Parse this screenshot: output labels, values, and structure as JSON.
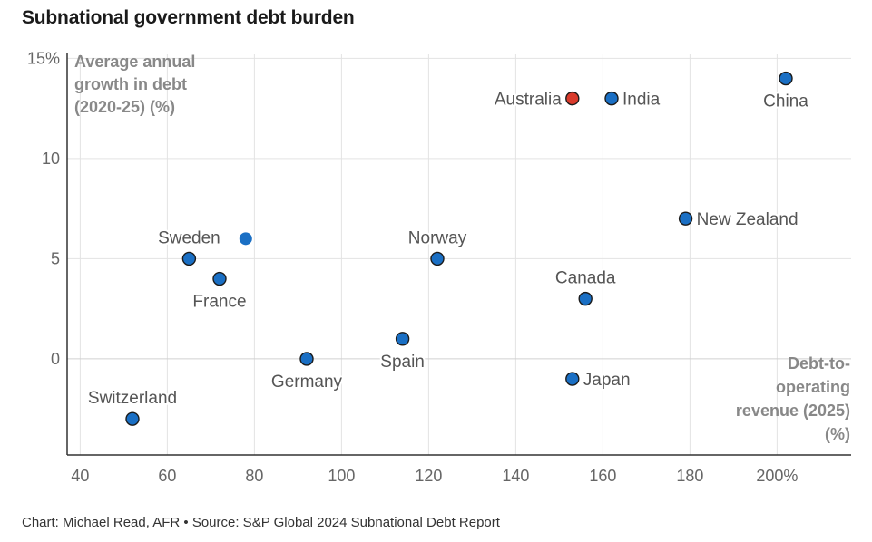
{
  "title": "Subnational government debt burden",
  "footer": "Chart: Michael Read, AFR • Source: S&P Global 2024 Subnational Debt Report",
  "colors": {
    "point": "#1a6fc4",
    "highlight": "#d93a2b",
    "grid": "#e3e3e3",
    "axis": "#333333"
  },
  "chart_data": {
    "type": "scatter",
    "title": "Subnational government debt burden",
    "xlabel": [
      "Debt-to-",
      "operating",
      "revenue (2025)",
      "(%)"
    ],
    "ylabel": [
      "Average annual",
      "growth in debt",
      "(2020-25) (%)"
    ],
    "xlim": [
      37,
      217
    ],
    "ylim": [
      -4.8,
      15.2
    ],
    "xticks": [
      {
        "value": 40,
        "label": "40"
      },
      {
        "value": 60,
        "label": "60"
      },
      {
        "value": 80,
        "label": "80"
      },
      {
        "value": 100,
        "label": "100"
      },
      {
        "value": 120,
        "label": "120"
      },
      {
        "value": 140,
        "label": "140"
      },
      {
        "value": 160,
        "label": "160"
      },
      {
        "value": 180,
        "label": "180"
      },
      {
        "value": 200,
        "label": "200%"
      }
    ],
    "yticks": [
      {
        "value": 0,
        "label": "0"
      },
      {
        "value": 5,
        "label": "5"
      },
      {
        "value": 10,
        "label": "10"
      },
      {
        "value": 15,
        "label": "15%"
      }
    ],
    "points": [
      {
        "name": "Switzerland",
        "x": 52,
        "y": -3,
        "label_pos": "above"
      },
      {
        "name": "Sweden",
        "x": 65,
        "y": 5,
        "label_pos": "above"
      },
      {
        "name": "",
        "x": 78,
        "y": 6,
        "label_pos": "none",
        "no_outline": true
      },
      {
        "name": "France",
        "x": 72,
        "y": 4,
        "label_pos": "below"
      },
      {
        "name": "Germany",
        "x": 92,
        "y": 0,
        "label_pos": "below"
      },
      {
        "name": "Spain",
        "x": 114,
        "y": 1,
        "label_pos": "below"
      },
      {
        "name": "Norway",
        "x": 122,
        "y": 5,
        "label_pos": "above"
      },
      {
        "name": "Australia",
        "x": 153,
        "y": 13,
        "label_pos": "left",
        "highlight": true
      },
      {
        "name": "India",
        "x": 162,
        "y": 13,
        "label_pos": "right"
      },
      {
        "name": "Japan",
        "x": 153,
        "y": -1,
        "label_pos": "right"
      },
      {
        "name": "Canada",
        "x": 156,
        "y": 3,
        "label_pos": "above"
      },
      {
        "name": "New Zealand",
        "x": 179,
        "y": 7,
        "label_pos": "right"
      },
      {
        "name": "China",
        "x": 202,
        "y": 14,
        "label_pos": "below"
      }
    ]
  }
}
